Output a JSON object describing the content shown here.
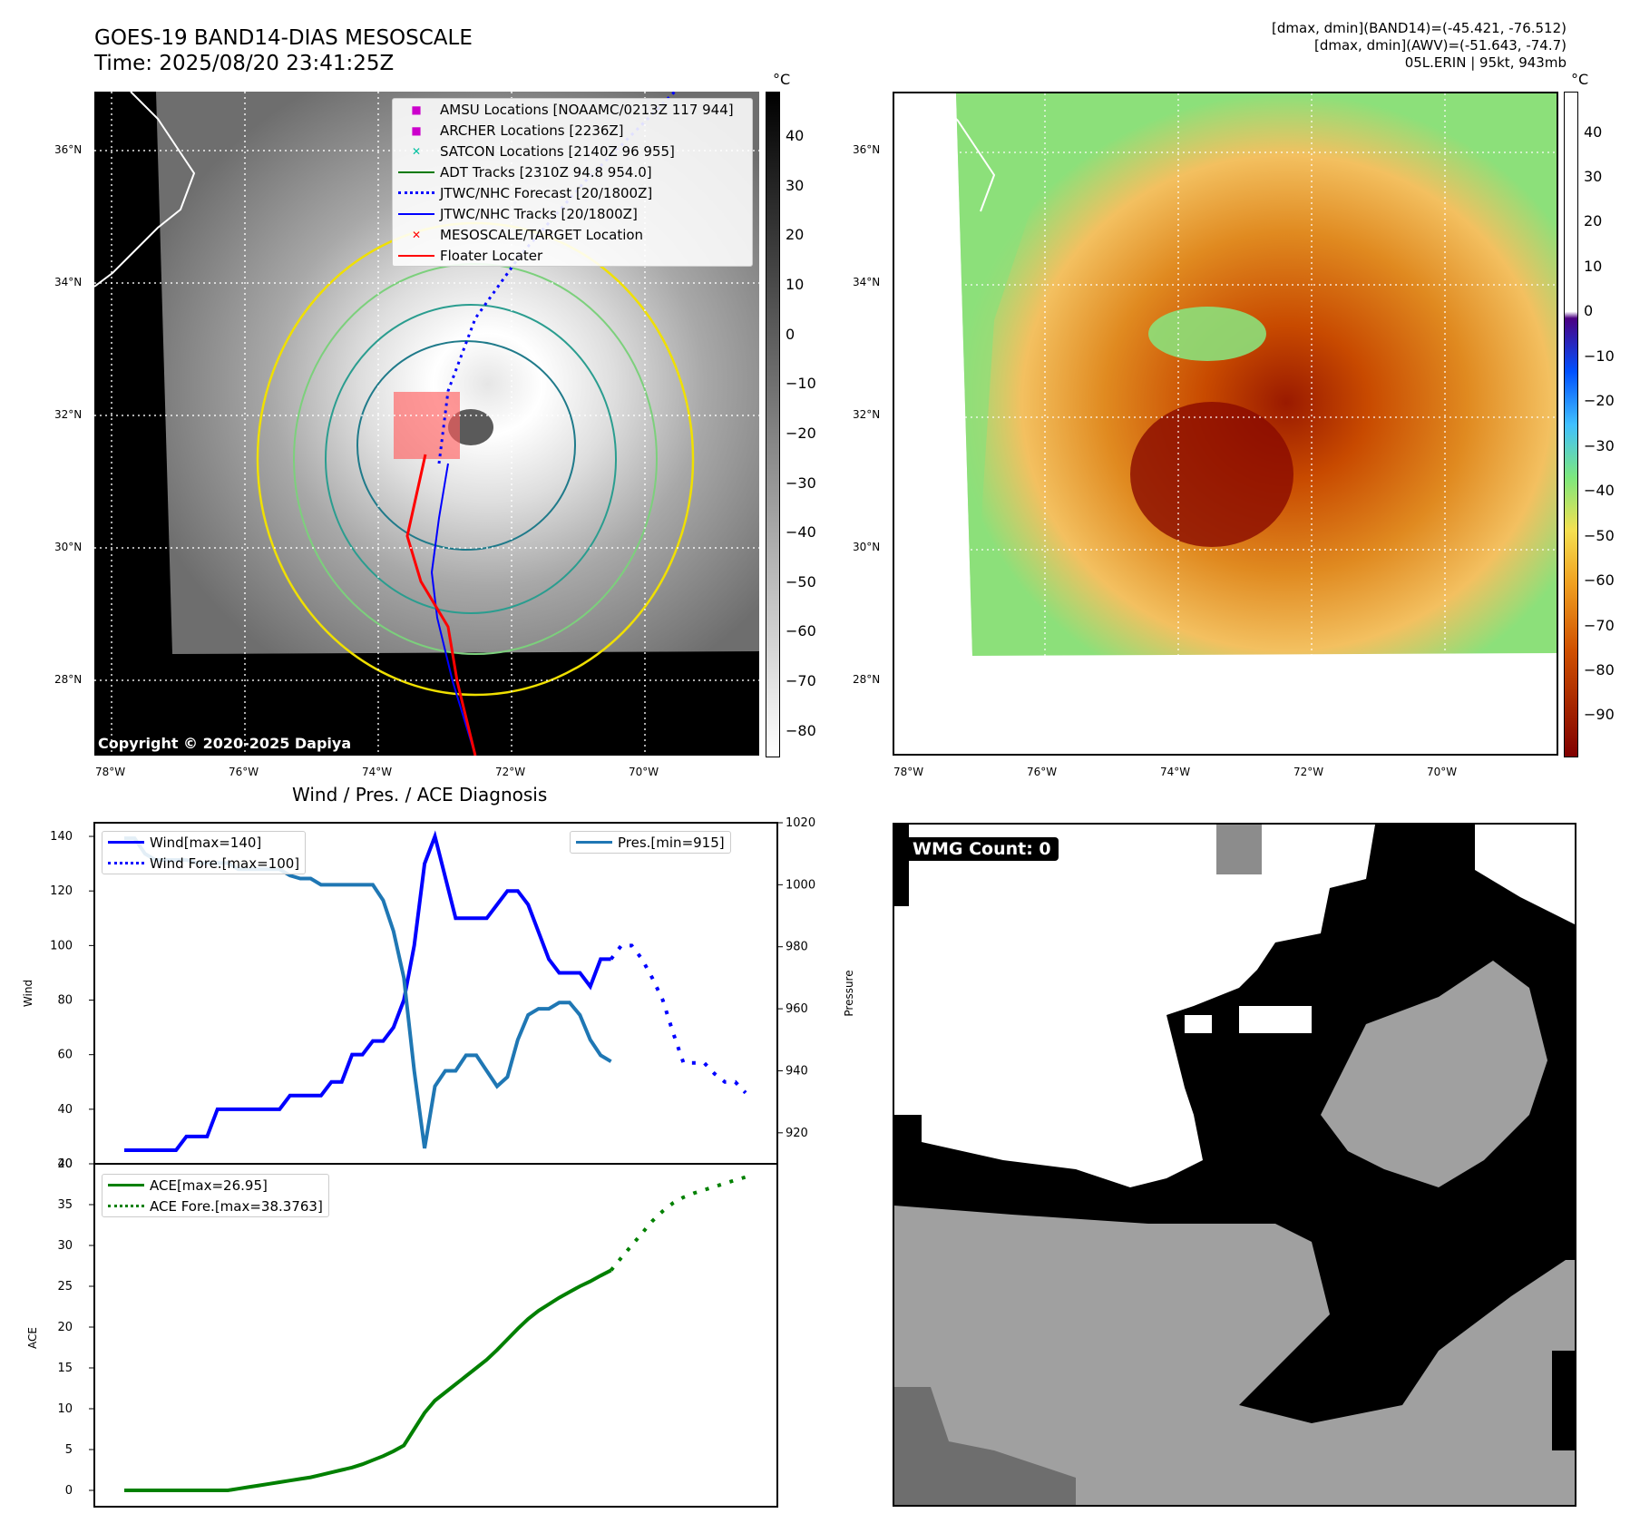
{
  "header": {
    "title_line1": "GOES-19 BAND14-DIAS MESOSCALE",
    "title_line2": "Time: 2025/08/20 23:41:25Z",
    "info_line1": "[dmax, dmin](BAND14)=(-45.421, -76.512)",
    "info_line2": "[dmax, dmin](AWV)=(-51.643, -74.7)",
    "info_line3": "05L.ERIN | 95kt, 943mb"
  },
  "map_axes": {
    "lat_labels": [
      "36°N",
      "34°N",
      "32°N",
      "30°N",
      "28°N"
    ],
    "lon_labels": [
      "78°W",
      "76°W",
      "74°W",
      "72°W",
      "70°W"
    ]
  },
  "colorbar_left": {
    "unit": "°C",
    "ticks": [
      "40",
      "30",
      "20",
      "10",
      "0",
      "−10",
      "−20",
      "−30",
      "−40",
      "−50",
      "−60",
      "−70",
      "−80"
    ]
  },
  "colorbar_right": {
    "unit": "°C",
    "ticks": [
      "40",
      "30",
      "20",
      "10",
      "0",
      "−10",
      "−20",
      "−30",
      "−40",
      "−50",
      "−60",
      "−70",
      "−80",
      "−90"
    ]
  },
  "legend_map": [
    {
      "label": "AMSU Locations [NOAAMC/0213Z 117 944]",
      "symbol": "■",
      "color": "#cc00cc"
    },
    {
      "label": "ARCHER Locations [2236Z]",
      "symbol": "■",
      "color": "#cc00cc"
    },
    {
      "label": "SATCON Locations [2140Z 96 955]",
      "symbol": "✕",
      "color": "#00c0a0"
    },
    {
      "label": "ADT Tracks [2310Z 94.8 954.0]",
      "symbol": "line",
      "color": "#007a00"
    },
    {
      "label": "JTWC/NHC Forecast [20/1800Z]",
      "symbol": "dotted",
      "color": "#0000ff"
    },
    {
      "label": "JTWC/NHC Tracks [20/1800Z]",
      "symbol": "linedot",
      "color": "#0000ff"
    },
    {
      "label": "MESOSCALE/TARGET Location",
      "symbol": "✕",
      "color": "#ff0000"
    },
    {
      "label": "Floater Locater",
      "symbol": "line",
      "color": "#ff0000"
    }
  ],
  "copyright": "Copyright © 2020-2025 Dapiya",
  "wmg": {
    "label": "WMG Count: 0"
  },
  "chart_data": [
    {
      "type": "line",
      "title": "Wind / Pres. / ACE Diagnosis",
      "ylabel": "Wind",
      "y2label": "Pressure",
      "ylim": [
        20,
        145
      ],
      "y2lim": [
        910,
        1020
      ],
      "yticks": [
        20,
        40,
        60,
        80,
        100,
        120,
        140
      ],
      "y2ticks": [
        920,
        940,
        960,
        980,
        1000,
        1020
      ],
      "series": [
        {
          "name": "Wind[max=140]",
          "axis": "left",
          "style": "solid",
          "color": "#0000ff",
          "values": [
            25,
            25,
            25,
            25,
            25,
            25,
            30,
            30,
            30,
            40,
            40,
            40,
            40,
            40,
            40,
            40,
            45,
            45,
            45,
            45,
            50,
            50,
            60,
            60,
            65,
            65,
            70,
            80,
            100,
            130,
            140,
            125,
            110,
            110,
            110,
            110,
            115,
            120,
            120,
            115,
            105,
            95,
            90,
            90,
            90,
            85,
            95,
            95
          ]
        },
        {
          "name": "Wind Fore.[max=100]",
          "axis": "left",
          "style": "dotted",
          "color": "#0000ff",
          "values": [
            95,
            100,
            100,
            95,
            88,
            80,
            68,
            57,
            57,
            57,
            53,
            50,
            50,
            46
          ]
        },
        {
          "name": "Pres.[min=915]",
          "axis": "right",
          "style": "solid",
          "color": "#1f77b4",
          "values": [
            1015,
            1015,
            1010,
            1008,
            1008,
            1008,
            1008,
            1007,
            1007,
            1007,
            1007,
            1005,
            1005,
            1005,
            1005,
            1005,
            1003,
            1002,
            1002,
            1000,
            1000,
            1000,
            1000,
            1000,
            1000,
            995,
            985,
            970,
            940,
            915,
            935,
            940,
            940,
            945,
            945,
            940,
            935,
            938,
            950,
            958,
            960,
            960,
            962,
            962,
            958,
            950,
            945,
            943
          ]
        }
      ]
    },
    {
      "type": "line",
      "ylabel": "ACE",
      "ylim": [
        -2,
        40
      ],
      "yticks": [
        0,
        5,
        10,
        15,
        20,
        25,
        30,
        35,
        40
      ],
      "series": [
        {
          "name": "ACE[max=26.95]",
          "style": "solid",
          "color": "#008000",
          "values": [
            0,
            0,
            0,
            0,
            0,
            0,
            0,
            0,
            0,
            0,
            0,
            0.2,
            0.4,
            0.6,
            0.8,
            1.0,
            1.2,
            1.4,
            1.6,
            1.9,
            2.2,
            2.5,
            2.8,
            3.2,
            3.7,
            4.2,
            4.8,
            5.5,
            7.5,
            9.5,
            11,
            12,
            13,
            14,
            15,
            16,
            17.2,
            18.5,
            19.8,
            21,
            22,
            22.8,
            23.6,
            24.3,
            25,
            25.6,
            26.3,
            26.95
          ]
        },
        {
          "name": "ACE Fore.[max=38.3763]",
          "style": "dotted",
          "color": "#008000",
          "values": [
            26.95,
            28.5,
            30,
            31.5,
            33,
            34.2,
            35.2,
            35.9,
            36.4,
            36.8,
            37.2,
            37.6,
            38,
            38.3763
          ]
        }
      ]
    }
  ]
}
